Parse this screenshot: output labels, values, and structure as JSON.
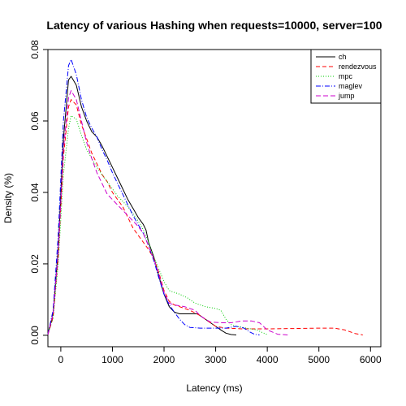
{
  "chart_data": {
    "type": "line",
    "title": "Latency of various Hashing when requests=10000, server=100",
    "xlabel": "Latency (ms)",
    "ylabel": "Density (%)",
    "xlim": [
      -250,
      6200
    ],
    "ylim": [
      -0.0032,
      0.08
    ],
    "xticks": [
      0,
      1000,
      2000,
      3000,
      4000,
      5000,
      6000
    ],
    "yticks": [
      0.0,
      0.02,
      0.04,
      0.06,
      0.08
    ],
    "ytick_labels": [
      "0.00",
      "0.02",
      "0.04",
      "0.06",
      "0.08"
    ],
    "legend_position": "top-right",
    "grid": false,
    "series": [
      {
        "name": "ch",
        "color": "#000000",
        "dash": "",
        "points": [
          [
            -250,
            0.0003
          ],
          [
            -150,
            0.006
          ],
          [
            -50,
            0.024
          ],
          [
            50,
            0.055
          ],
          [
            150,
            0.0715
          ],
          [
            200,
            0.0725
          ],
          [
            300,
            0.07
          ],
          [
            400,
            0.064
          ],
          [
            500,
            0.06
          ],
          [
            600,
            0.057
          ],
          [
            700,
            0.0555
          ],
          [
            800,
            0.053
          ],
          [
            900,
            0.05
          ],
          [
            1000,
            0.047
          ],
          [
            1100,
            0.044
          ],
          [
            1200,
            0.041
          ],
          [
            1300,
            0.038
          ],
          [
            1400,
            0.0355
          ],
          [
            1500,
            0.033
          ],
          [
            1600,
            0.031
          ],
          [
            1650,
            0.0295
          ],
          [
            1700,
            0.026
          ],
          [
            1800,
            0.022
          ],
          [
            1900,
            0.0165
          ],
          [
            2000,
            0.0115
          ],
          [
            2100,
            0.008
          ],
          [
            2200,
            0.0065
          ],
          [
            2300,
            0.006
          ],
          [
            2500,
            0.006
          ],
          [
            2650,
            0.006
          ],
          [
            2800,
            0.0045
          ],
          [
            2900,
            0.0035
          ],
          [
            3000,
            0.0025
          ],
          [
            3100,
            0.0015
          ],
          [
            3200,
            0.0006
          ],
          [
            3300,
            0.0002
          ],
          [
            3400,
            0.0001
          ]
        ]
      },
      {
        "name": "rendezvous",
        "color": "#ff0000",
        "dash": "5,3",
        "points": [
          [
            -250,
            0.0002
          ],
          [
            -150,
            0.005
          ],
          [
            -50,
            0.022
          ],
          [
            50,
            0.05
          ],
          [
            150,
            0.064
          ],
          [
            200,
            0.066
          ],
          [
            300,
            0.0645
          ],
          [
            400,
            0.059
          ],
          [
            500,
            0.055
          ],
          [
            600,
            0.051
          ],
          [
            700,
            0.048
          ],
          [
            800,
            0.045
          ],
          [
            900,
            0.043
          ],
          [
            1000,
            0.04
          ],
          [
            1100,
            0.038
          ],
          [
            1200,
            0.036
          ],
          [
            1300,
            0.033
          ],
          [
            1400,
            0.03
          ],
          [
            1500,
            0.028
          ],
          [
            1600,
            0.026
          ],
          [
            1700,
            0.024
          ],
          [
            1800,
            0.0215
          ],
          [
            1900,
            0.0175
          ],
          [
            2000,
            0.0125
          ],
          [
            2100,
            0.0095
          ],
          [
            2200,
            0.0085
          ],
          [
            2300,
            0.008
          ],
          [
            2500,
            0.007
          ],
          [
            2700,
            0.0055
          ],
          [
            2900,
            0.0035
          ],
          [
            3000,
            0.0025
          ],
          [
            3200,
            0.002
          ],
          [
            3500,
            0.0018
          ],
          [
            4000,
            0.0018
          ],
          [
            4500,
            0.0019
          ],
          [
            5000,
            0.002
          ],
          [
            5300,
            0.002
          ],
          [
            5500,
            0.0015
          ],
          [
            5700,
            0.0005
          ],
          [
            5850,
            0.0001
          ]
        ]
      },
      {
        "name": "mpc",
        "color": "#00cc00",
        "dash": "1,2",
        "points": [
          [
            -250,
            0.0002
          ],
          [
            -150,
            0.005
          ],
          [
            -50,
            0.02
          ],
          [
            50,
            0.045
          ],
          [
            150,
            0.058
          ],
          [
            200,
            0.0615
          ],
          [
            300,
            0.0605
          ],
          [
            400,
            0.056
          ],
          [
            500,
            0.052
          ],
          [
            600,
            0.0495
          ],
          [
            700,
            0.047
          ],
          [
            800,
            0.045
          ],
          [
            900,
            0.043
          ],
          [
            1000,
            0.041
          ],
          [
            1100,
            0.039
          ],
          [
            1200,
            0.0375
          ],
          [
            1300,
            0.036
          ],
          [
            1400,
            0.034
          ],
          [
            1500,
            0.032
          ],
          [
            1600,
            0.0295
          ],
          [
            1700,
            0.026
          ],
          [
            1800,
            0.022
          ],
          [
            1900,
            0.0185
          ],
          [
            2000,
            0.015
          ],
          [
            2100,
            0.0125
          ],
          [
            2200,
            0.012
          ],
          [
            2300,
            0.0115
          ],
          [
            2450,
            0.0105
          ],
          [
            2600,
            0.009
          ],
          [
            2800,
            0.008
          ],
          [
            3000,
            0.0075
          ],
          [
            3100,
            0.007
          ],
          [
            3200,
            0.0045
          ],
          [
            3300,
            0.003
          ],
          [
            3400,
            0.0025
          ],
          [
            3600,
            0.002
          ],
          [
            3800,
            0.0015
          ],
          [
            3900,
            0.0008
          ],
          [
            4000,
            0.0002
          ]
        ]
      },
      {
        "name": "maglev",
        "color": "#0000ff",
        "dash": "6,2,1,2",
        "points": [
          [
            -250,
            0.0003
          ],
          [
            -150,
            0.007
          ],
          [
            -50,
            0.028
          ],
          [
            50,
            0.06
          ],
          [
            150,
            0.0755
          ],
          [
            200,
            0.0772
          ],
          [
            300,
            0.073
          ],
          [
            400,
            0.066
          ],
          [
            500,
            0.061
          ],
          [
            600,
            0.058
          ],
          [
            700,
            0.0555
          ],
          [
            800,
            0.052
          ],
          [
            900,
            0.049
          ],
          [
            1000,
            0.0455
          ],
          [
            1100,
            0.0425
          ],
          [
            1200,
            0.0395
          ],
          [
            1300,
            0.0365
          ],
          [
            1400,
            0.0335
          ],
          [
            1500,
            0.031
          ],
          [
            1600,
            0.0285
          ],
          [
            1700,
            0.025
          ],
          [
            1800,
            0.021
          ],
          [
            1900,
            0.016
          ],
          [
            2000,
            0.0115
          ],
          [
            2100,
            0.0085
          ],
          [
            2200,
            0.0065
          ],
          [
            2300,
            0.0045
          ],
          [
            2400,
            0.003
          ],
          [
            2500,
            0.0022
          ],
          [
            2700,
            0.002
          ],
          [
            3000,
            0.002
          ],
          [
            3200,
            0.002
          ],
          [
            3400,
            0.0025
          ],
          [
            3550,
            0.002
          ],
          [
            3650,
            0.001
          ],
          [
            3750,
            0.0003
          ],
          [
            3850,
            0.0001
          ]
        ]
      },
      {
        "name": "jump",
        "color": "#cc00cc",
        "dash": "6,3",
        "points": [
          [
            -250,
            0.0002
          ],
          [
            -150,
            0.006
          ],
          [
            -50,
            0.023
          ],
          [
            50,
            0.052
          ],
          [
            150,
            0.0665
          ],
          [
            200,
            0.0685
          ],
          [
            300,
            0.066
          ],
          [
            400,
            0.06
          ],
          [
            500,
            0.054
          ],
          [
            600,
            0.0495
          ],
          [
            700,
            0.0455
          ],
          [
            800,
            0.0425
          ],
          [
            900,
            0.0395
          ],
          [
            1000,
            0.038
          ],
          [
            1100,
            0.0365
          ],
          [
            1200,
            0.035
          ],
          [
            1300,
            0.0335
          ],
          [
            1400,
            0.032
          ],
          [
            1500,
            0.0305
          ],
          [
            1600,
            0.0285
          ],
          [
            1700,
            0.025
          ],
          [
            1800,
            0.0215
          ],
          [
            1900,
            0.017
          ],
          [
            2000,
            0.012
          ],
          [
            2100,
            0.009
          ],
          [
            2200,
            0.0085
          ],
          [
            2400,
            0.008
          ],
          [
            2600,
            0.007
          ],
          [
            2700,
            0.0055
          ],
          [
            2800,
            0.0045
          ],
          [
            2900,
            0.0037
          ],
          [
            3100,
            0.0035
          ],
          [
            3300,
            0.0035
          ],
          [
            3500,
            0.004
          ],
          [
            3700,
            0.004
          ],
          [
            3850,
            0.0035
          ],
          [
            4000,
            0.0015
          ],
          [
            4200,
            0.0003
          ],
          [
            4400,
            0.0001
          ]
        ]
      }
    ]
  }
}
